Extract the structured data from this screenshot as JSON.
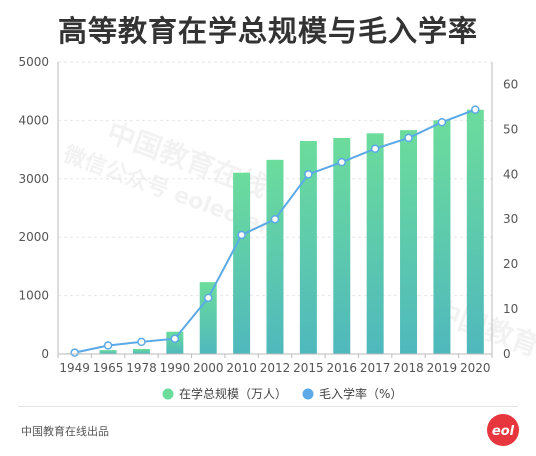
{
  "title": "高等教育在学总规模与毛入学率",
  "footer": "中国教育在线出品",
  "watermark": [
    "中国教育在线",
    "微信公众号 eoleoler"
  ],
  "logo_text": "eol",
  "colors": {
    "bar_top": "#6cdc9c",
    "bar_bottom": "#4fb8bd",
    "line": "#5ba9e6",
    "grid": "#e6e6e6",
    "logo": "#e8363f"
  },
  "chart_data": {
    "type": "bar",
    "categories": [
      "1949",
      "1965",
      "1978",
      "1990",
      "2000",
      "2010",
      "2012",
      "2015",
      "2016",
      "2017",
      "2018",
      "2019",
      "2020"
    ],
    "series": [
      {
        "name": "在学总规模（万人）",
        "type": "bar",
        "axis": "left",
        "values": [
          12,
          67,
          86,
          382,
          1230,
          3105,
          3325,
          3647,
          3699,
          3779,
          3833,
          4002,
          4183
        ]
      },
      {
        "name": "毛入学率（%）",
        "type": "line",
        "axis": "right",
        "values": [
          0.3,
          1.9,
          2.7,
          3.4,
          12.5,
          26.5,
          30.0,
          40.0,
          42.7,
          45.7,
          48.1,
          51.6,
          54.4
        ]
      }
    ],
    "y_left": {
      "min": 0,
      "max": 5000,
      "ticks": [
        0,
        1000,
        2000,
        3000,
        4000,
        5000
      ]
    },
    "y_right": {
      "min": 0,
      "max": 65,
      "ticks": [
        0,
        10,
        20,
        30,
        40,
        50,
        60
      ]
    },
    "grid": true,
    "legend_position": "bottom-center"
  }
}
